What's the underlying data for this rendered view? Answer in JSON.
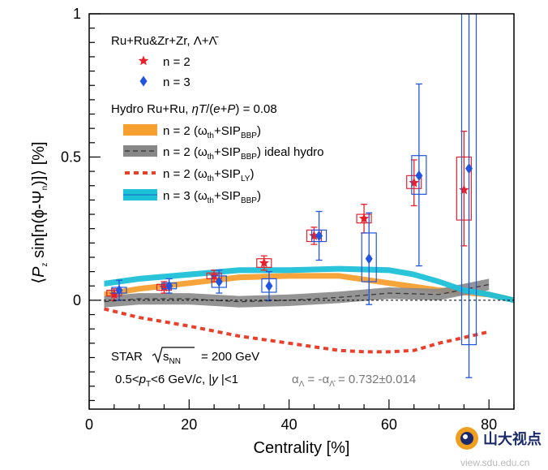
{
  "chart_data": {
    "type": "scatter",
    "xlabel": "Centrality [%]",
    "ylabel": "⟨P_z sin[n(ϕ-Ψ_n)]⟩ [%]",
    "xlim": [
      0,
      85
    ],
    "ylim": [
      -0.38,
      1.0
    ],
    "xticks": [
      "0",
      "20",
      "40",
      "60",
      "80"
    ],
    "yticks": [
      "0",
      "0.5",
      "1"
    ],
    "zero_line": "dashed",
    "grid": false,
    "series": [
      {
        "name": "n = 2",
        "marker": "star",
        "color": "#e8202a",
        "points": [
          {
            "x": 5,
            "y": 0.02,
            "stat_lo": 0.0,
            "stat_hi": 0.04,
            "sys_lo": 0.015,
            "sys_hi": 0.035
          },
          {
            "x": 15,
            "y": 0.045,
            "stat_lo": 0.025,
            "stat_hi": 0.065,
            "sys_lo": 0.035,
            "sys_hi": 0.055
          },
          {
            "x": 25,
            "y": 0.085,
            "stat_lo": 0.065,
            "stat_hi": 0.105,
            "sys_lo": 0.075,
            "sys_hi": 0.095
          },
          {
            "x": 35,
            "y": 0.13,
            "stat_lo": 0.105,
            "stat_hi": 0.155,
            "sys_lo": 0.115,
            "sys_hi": 0.145
          },
          {
            "x": 45,
            "y": 0.225,
            "stat_lo": 0.195,
            "stat_hi": 0.255,
            "sys_lo": 0.205,
            "sys_hi": 0.245
          },
          {
            "x": 55,
            "y": 0.285,
            "stat_lo": 0.235,
            "stat_hi": 0.335,
            "sys_lo": 0.27,
            "sys_hi": 0.3
          },
          {
            "x": 65,
            "y": 0.41,
            "stat_lo": 0.33,
            "stat_hi": 0.49,
            "sys_lo": 0.39,
            "sys_hi": 0.435
          },
          {
            "x": 75,
            "y": 0.385,
            "stat_lo": 0.19,
            "stat_hi": 0.59,
            "sys_lo": 0.28,
            "sys_hi": 0.5
          }
        ]
      },
      {
        "name": "n = 3",
        "marker": "diamond",
        "color": "#1f55e0",
        "points": [
          {
            "x": 6,
            "y": 0.035,
            "stat_lo": 0.0,
            "stat_hi": 0.07,
            "sys_lo": 0.025,
            "sys_hi": 0.045
          },
          {
            "x": 16,
            "y": 0.05,
            "stat_lo": 0.025,
            "stat_hi": 0.075,
            "sys_lo": 0.04,
            "sys_hi": 0.06
          },
          {
            "x": 26,
            "y": 0.065,
            "stat_lo": 0.025,
            "stat_hi": 0.105,
            "sys_lo": 0.045,
            "sys_hi": 0.085
          },
          {
            "x": 36,
            "y": 0.05,
            "stat_lo": 0.0,
            "stat_hi": 0.1,
            "sys_lo": 0.028,
            "sys_hi": 0.075
          },
          {
            "x": 46,
            "y": 0.225,
            "stat_lo": 0.14,
            "stat_hi": 0.31,
            "sys_lo": 0.205,
            "sys_hi": 0.245
          },
          {
            "x": 56,
            "y": 0.145,
            "stat_lo": -0.015,
            "stat_hi": 0.305,
            "sys_lo": 0.065,
            "sys_hi": 0.235
          },
          {
            "x": 66,
            "y": 0.435,
            "stat_lo": 0.12,
            "stat_hi": 0.755,
            "sys_lo": 0.37,
            "sys_hi": 0.505
          },
          {
            "x": 76,
            "y": 0.46,
            "stat_lo": -0.27,
            "stat_hi": 1.0,
            "sys_lo": -0.155,
            "sys_hi": 1.0
          }
        ]
      }
    ],
    "curves": [
      {
        "name": "n = 2 (ωth+SIP_BBP)",
        "style": "band",
        "color": "#f7a030",
        "x": [
          3,
          10,
          20,
          30,
          40,
          50,
          60,
          70,
          80,
          85
        ],
        "y": [
          0.02,
          0.04,
          0.06,
          0.08,
          0.085,
          0.085,
          0.06,
          0.035,
          0.02,
          0.0
        ],
        "width": 0.01
      },
      {
        "name": "n = 2 (ωth+SIP_BBP) ideal hydro",
        "style": "band-dashed",
        "color": "#888888",
        "x": [
          3,
          10,
          20,
          30,
          40,
          50,
          60,
          70,
          80
        ],
        "y": [
          -0.005,
          0.005,
          0.005,
          -0.005,
          0.0,
          0.01,
          0.025,
          0.02,
          0.055
        ],
        "width": 0.02
      },
      {
        "name": "n = 2 (ωth+SIP_LY)",
        "style": "dotted",
        "color": "#e8402a",
        "x": [
          3,
          10,
          20,
          30,
          40,
          50,
          55,
          60,
          65,
          70,
          75,
          80
        ],
        "y": [
          -0.03,
          -0.06,
          -0.09,
          -0.125,
          -0.15,
          -0.175,
          -0.18,
          -0.18,
          -0.175,
          -0.15,
          -0.13,
          -0.11
        ]
      },
      {
        "name": "n = 3 (ωth+SIP_BBP)",
        "style": "band",
        "color": "#1ec0d8",
        "x": [
          3,
          10,
          20,
          30,
          40,
          50,
          60,
          65,
          70,
          75,
          80,
          85
        ],
        "y": [
          0.058,
          0.075,
          0.09,
          0.105,
          0.105,
          0.11,
          0.105,
          0.09,
          0.065,
          0.035,
          0.02,
          0.0
        ],
        "width": 0.01
      }
    ],
    "legend": {
      "position": "top-left",
      "header": "Ru+Ru&Zr+Zr, Λ+Λ̄",
      "data_entries": [
        "n = 2",
        "n = 3"
      ],
      "model_header": "Hydro Ru+Ru, ηT/(e+P) = 0.08",
      "model_entries": [
        {
          "pre": "n = 2 (ω",
          "sub1": "th",
          "mid": "+SIP",
          "sub2": "BBP",
          "post": ")"
        },
        {
          "pre": "n = 2 (ω",
          "sub1": "th",
          "mid": "+SIP",
          "sub2": "BBP",
          "post": ") ideal hydro"
        },
        {
          "pre": "n = 2 (ω",
          "sub1": "th",
          "mid": "+SIP",
          "sub2": "LY",
          "post": ")"
        },
        {
          "pre": "n = 3 (ω",
          "sub1": "th",
          "mid": "+SIP",
          "sub2": "BBP",
          "post": ")"
        }
      ]
    },
    "annotations": {
      "experiment": "STAR",
      "energy": "= 200 GeV",
      "kinematics": "0.5<p_T<6 GeV/c, |y| <1",
      "alpha": "α_Λ = -α_Λ̄ = 0.732±0.014"
    }
  },
  "watermark": {
    "brand": "山大视点",
    "url": "view.sdu.edu.cn"
  }
}
